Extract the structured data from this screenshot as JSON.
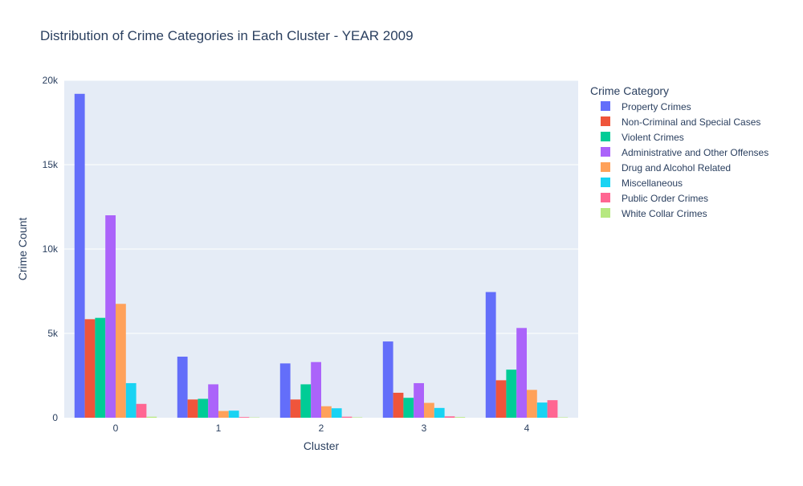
{
  "chart_data": {
    "type": "bar",
    "title": "Distribution of Crime Categories in Each Cluster - YEAR 2009",
    "xlabel": "Cluster",
    "ylabel": "Crime Count",
    "categories": [
      "0",
      "1",
      "2",
      "3",
      "4"
    ],
    "ylim": [
      0,
      20000
    ],
    "y_ticks": [
      0,
      5000,
      10000,
      15000,
      20000
    ],
    "y_tick_labels": [
      "0",
      "5k",
      "10k",
      "15k",
      "20k"
    ],
    "grid": true,
    "legend": {
      "title": "Crime Category",
      "placement": "right"
    },
    "series": [
      {
        "name": "Property Crimes",
        "color": "#636efa",
        "values": [
          19200,
          3620,
          3220,
          4520,
          7450
        ]
      },
      {
        "name": "Non-Criminal and Special Cases",
        "color": "#ef553b",
        "values": [
          5840,
          1080,
          1080,
          1480,
          2220
        ]
      },
      {
        "name": "Violent Crimes",
        "color": "#00cc96",
        "values": [
          5920,
          1120,
          1980,
          1180,
          2850
        ]
      },
      {
        "name": "Administrative and Other Offenses",
        "color": "#ab63fa",
        "values": [
          12000,
          1980,
          3300,
          2050,
          5320
        ]
      },
      {
        "name": "Drug and Alcohol Related",
        "color": "#ffa15a",
        "values": [
          6750,
          400,
          680,
          880,
          1650
        ]
      },
      {
        "name": "Miscellaneous",
        "color": "#19d3f3",
        "values": [
          2050,
          420,
          560,
          580,
          900
        ]
      },
      {
        "name": "Public Order Crimes",
        "color": "#ff6692",
        "values": [
          820,
          40,
          60,
          80,
          1040
        ]
      },
      {
        "name": "White Collar Crimes",
        "color": "#b6e880",
        "values": [
          60,
          20,
          25,
          40,
          25
        ]
      }
    ]
  }
}
